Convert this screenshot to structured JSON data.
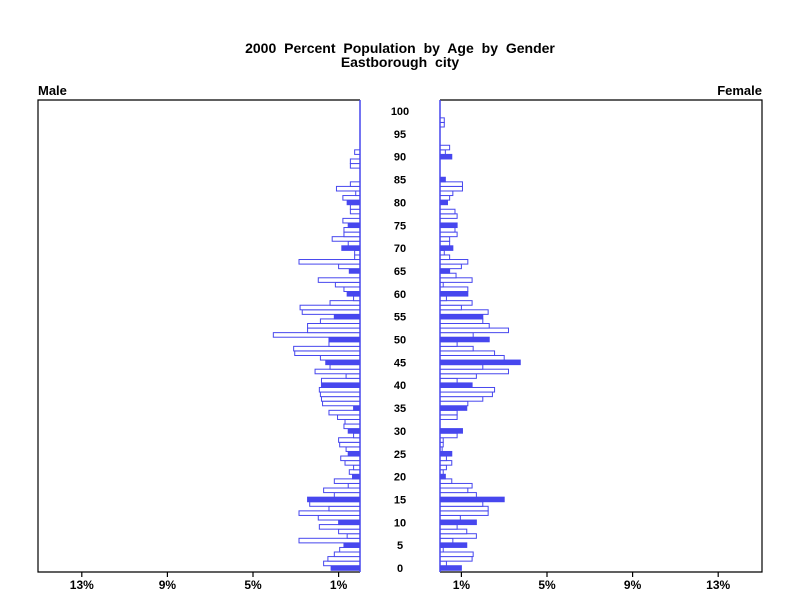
{
  "title": {
    "line1": "2000 Percent Population by Age by Gender",
    "line2": "Eastborough city"
  },
  "panel_labels": {
    "male": "Male",
    "female": "Female"
  },
  "colors": {
    "bar": "#4747ee",
    "hollow_fill": "#ffffff",
    "frame": "#000000"
  },
  "chart_data": {
    "type": "bar",
    "subtype": "population_pyramid",
    "title": "2000 Percent Population by Age by Gender",
    "subtitle": "Eastborough city",
    "unit": "percent of population",
    "age_min": 0,
    "age_max": 100,
    "age_axis_tick_labels": [
      "0",
      "5",
      "10",
      "15",
      "20",
      "25",
      "30",
      "35",
      "40",
      "45",
      "50",
      "55",
      "60",
      "65",
      "70",
      "75",
      "80",
      "85",
      "90",
      "95",
      "100"
    ],
    "x_axis": {
      "tick_values": [
        1,
        5,
        9,
        13
      ],
      "male_tick_labels": [
        "1%",
        "5%",
        "9%",
        "13%"
      ],
      "female_tick_labels": [
        "1%",
        "5%",
        "9%",
        "13%"
      ],
      "axis_max_pct": 15,
      "grid": false
    },
    "fill_rule": "bars at ages divisible by 5 are solid blue; all other ages are hollow with blue outline",
    "series": [
      {
        "name": "Male",
        "side": "left",
        "values": [
          1.35,
          1.7,
          1.5,
          1.2,
          0.95,
          0.75,
          2.85,
          0.6,
          1.0,
          1.9,
          1.0,
          1.95,
          2.85,
          1.45,
          2.35,
          2.45,
          1.2,
          1.7,
          0.55,
          1.2,
          0.35,
          0.5,
          0.3,
          0.7,
          0.9,
          0.55,
          0.65,
          0.95,
          1.0,
          0.3,
          0.55,
          0.75,
          0.7,
          1.05,
          1.45,
          0.3,
          1.75,
          1.8,
          1.85,
          1.9,
          1.8,
          1.8,
          0.65,
          2.1,
          1.4,
          1.6,
          1.85,
          3.05,
          3.1,
          1.45,
          1.45,
          4.05,
          2.45,
          2.45,
          1.85,
          1.2,
          2.7,
          2.8,
          1.4,
          0.3,
          0.6,
          0.75,
          1.15,
          1.95,
          0,
          0.5,
          1.0,
          2.85,
          0.25,
          0.25,
          0.85,
          0.55,
          1.3,
          0.75,
          0.75,
          0.55,
          0.8,
          0,
          0.45,
          0.45,
          0.6,
          0.8,
          0.2,
          1.1,
          0.45,
          0,
          0,
          0,
          0.45,
          0.45,
          0,
          0.25,
          0,
          0,
          0,
          0,
          0,
          0,
          0,
          0,
          0
        ]
      },
      {
        "name": "Female",
        "side": "right",
        "values": [
          1.0,
          0.3,
          1.5,
          1.55,
          0.15,
          1.25,
          0.6,
          1.7,
          1.25,
          0.8,
          1.7,
          0.95,
          2.25,
          2.25,
          2.0,
          3.0,
          1.7,
          1.3,
          1.5,
          0.55,
          0.25,
          0.15,
          0.3,
          0.55,
          0.3,
          0.55,
          0.1,
          0.15,
          0.15,
          0.8,
          1.05,
          0,
          0,
          0.8,
          0.8,
          1.25,
          1.3,
          2.0,
          2.45,
          2.55,
          1.5,
          0.8,
          1.7,
          3.2,
          2.0,
          3.75,
          3.0,
          2.55,
          1.55,
          0.8,
          2.3,
          1.55,
          3.2,
          2.3,
          2.0,
          2.0,
          2.25,
          1.0,
          1.5,
          0.3,
          1.3,
          1.3,
          0.15,
          1.5,
          0.75,
          0.45,
          1.0,
          1.3,
          0.45,
          0.2,
          0.6,
          0.45,
          0.45,
          0.8,
          0.7,
          0.8,
          0,
          0.8,
          0.7,
          0,
          0.35,
          0.45,
          0.6,
          1.05,
          1.05,
          0.25,
          0,
          0,
          0,
          0,
          0.55,
          0.25,
          0.45,
          0,
          0,
          0,
          0,
          0.2,
          0.2,
          0,
          0
        ]
      }
    ]
  }
}
